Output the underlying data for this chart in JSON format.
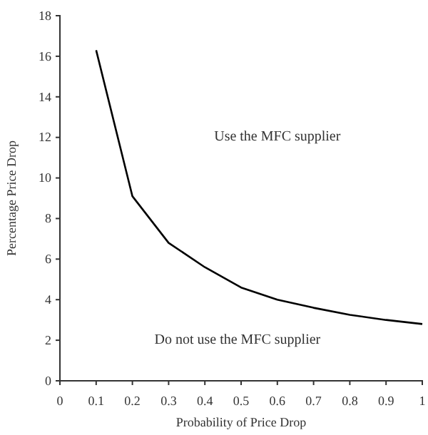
{
  "chart_data": {
    "type": "line",
    "xlabel": "Probability of Price Drop",
    "ylabel": "Percentage Price Drop",
    "x": [
      0.1,
      0.2,
      0.3,
      0.4,
      0.5,
      0.6,
      0.7,
      0.8,
      0.9,
      1
    ],
    "series": [
      {
        "color": "#000000",
        "values": [
          16.3,
          9.1,
          6.8,
          5.6,
          4.6,
          4.0,
          3.6,
          3.25,
          3.0,
          2.8
        ]
      }
    ],
    "xlim": [
      0,
      1
    ],
    "xticks": [
      0,
      0.1,
      0.2,
      0.3,
      0.4,
      0.5,
      0.6,
      0.7,
      0.8,
      0.9,
      1
    ],
    "ylim": [
      0,
      18
    ],
    "yticks": [
      0,
      2,
      4,
      6,
      8,
      10,
      12,
      14,
      16,
      18
    ],
    "annotations": [
      "Use the MFC supplier",
      "Do not use the MFC supplier"
    ],
    "grid": false,
    "marker": "none",
    "line_style": "solid"
  }
}
